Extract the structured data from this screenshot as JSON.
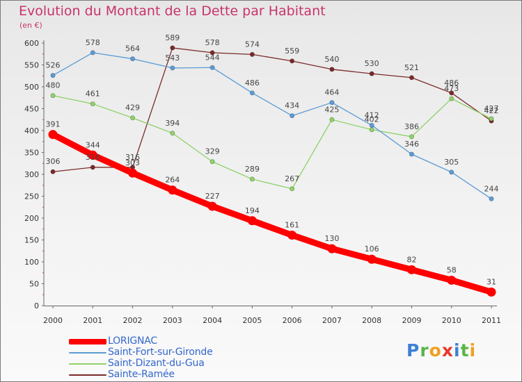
{
  "chart_data": {
    "type": "line",
    "title": "Evolution du Montant de la Dette par Habitant",
    "subtitle": "(en €)",
    "xlabel": "",
    "ylabel": "",
    "categories": [
      "2000",
      "2001",
      "2002",
      "2003",
      "2004",
      "2005",
      "2006",
      "2007",
      "2008",
      "2009",
      "2010",
      "2011"
    ],
    "ylim": [
      0,
      600
    ],
    "yticks": [
      "0",
      "50",
      "100",
      "150",
      "200",
      "250",
      "300",
      "350",
      "400",
      "450",
      "500",
      "550",
      "600"
    ],
    "series": [
      {
        "name": "LORIGNAC",
        "color": "#ff0000",
        "values": [
          391,
          344,
          303,
          264,
          227,
          194,
          161,
          130,
          106,
          82,
          58,
          31
        ]
      },
      {
        "name": "Saint-Fort-sur-Gironde",
        "color": "#5b9bd5",
        "values": [
          526,
          578,
          564,
          543,
          544,
          486,
          434,
          464,
          412,
          346,
          305,
          244
        ]
      },
      {
        "name": "Saint-Dizant-du-Gua",
        "color": "#8fd16a",
        "values": [
          480,
          461,
          429,
          394,
          329,
          289,
          267,
          425,
          402,
          386,
          473,
          427
        ]
      },
      {
        "name": "Sainte-Ramée",
        "color": "#7b2a2a",
        "values": [
          306,
          316,
          316,
          589,
          578,
          574,
          559,
          540,
          530,
          521,
          486,
          422
        ]
      }
    ],
    "legend_position": "bottom-left",
    "grid": false
  },
  "logo": {
    "letters": [
      {
        "ch": "P",
        "color": "#3d7fd6"
      },
      {
        "ch": "r",
        "color": "#59b548"
      },
      {
        "ch": "o",
        "color": "#f0a020"
      },
      {
        "ch": "x",
        "color": "#e8382a"
      },
      {
        "ch": "i",
        "color": "#3d7fd6"
      },
      {
        "ch": "t",
        "color": "#59b548"
      },
      {
        "ch": "i",
        "color": "#f0a020"
      }
    ]
  }
}
